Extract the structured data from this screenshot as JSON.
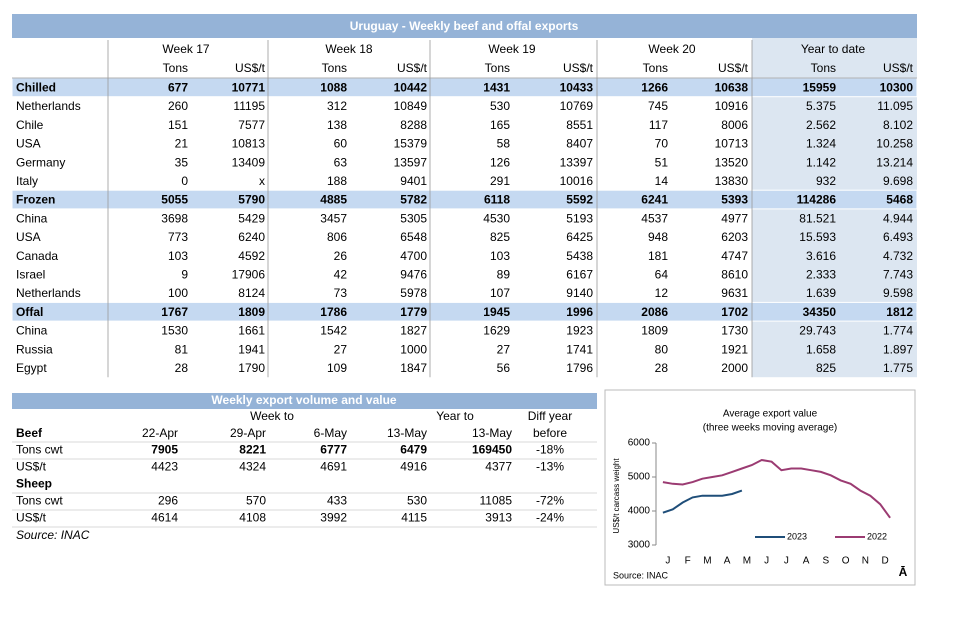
{
  "table1": {
    "title": "Uruguay - Weekly beef and offal exports",
    "header": [
      "Week 17",
      "Week 18",
      "Week 19",
      "Week 20",
      "Year to date"
    ],
    "units": [
      "Tons",
      "US$/t",
      "Tons",
      "US$/t",
      "Tons",
      "US$/t",
      "Tons",
      "US$/t",
      "Tons",
      "US$/t"
    ],
    "rows": [
      {
        "label": "Chilled",
        "section": true,
        "cells": [
          "677",
          "10771",
          "1088",
          "10442",
          "1431",
          "10433",
          "1266",
          "10638",
          "15959",
          "10300"
        ]
      },
      {
        "label": "Netherlands",
        "cells": [
          "260",
          "11195",
          "312",
          "10849",
          "530",
          "10769",
          "745",
          "10916",
          "5.375",
          "11.095"
        ]
      },
      {
        "label": "Chile",
        "cells": [
          "151",
          "7577",
          "138",
          "8288",
          "165",
          "8551",
          "117",
          "8006",
          "2.562",
          "8.102"
        ]
      },
      {
        "label": "USA",
        "cells": [
          "21",
          "10813",
          "60",
          "15379",
          "58",
          "8407",
          "70",
          "10713",
          "1.324",
          "10.258"
        ]
      },
      {
        "label": "Germany",
        "cells": [
          "35",
          "13409",
          "63",
          "13597",
          "126",
          "13397",
          "51",
          "13520",
          "1.142",
          "13.214"
        ]
      },
      {
        "label": "Italy",
        "cells": [
          "0",
          "x",
          "188",
          "9401",
          "291",
          "10016",
          "14",
          "13830",
          "932",
          "9.698"
        ]
      },
      {
        "label": "Frozen",
        "section": true,
        "cells": [
          "5055",
          "5790",
          "4885",
          "5782",
          "6118",
          "5592",
          "6241",
          "5393",
          "114286",
          "5468"
        ]
      },
      {
        "label": "China",
        "cells": [
          "3698",
          "5429",
          "3457",
          "5305",
          "4530",
          "5193",
          "4537",
          "4977",
          "81.521",
          "4.944"
        ]
      },
      {
        "label": "USA",
        "cells": [
          "773",
          "6240",
          "806",
          "6548",
          "825",
          "6425",
          "948",
          "6203",
          "15.593",
          "6.493"
        ]
      },
      {
        "label": "Canada",
        "cells": [
          "103",
          "4592",
          "26",
          "4700",
          "103",
          "5438",
          "181",
          "4747",
          "3.616",
          "4.732"
        ]
      },
      {
        "label": "Israel",
        "cells": [
          "9",
          "17906",
          "42",
          "9476",
          "89",
          "6167",
          "64",
          "8610",
          "2.333",
          "7.743"
        ]
      },
      {
        "label": "Netherlands",
        "cells": [
          "100",
          "8124",
          "73",
          "5978",
          "107",
          "9140",
          "12",
          "9631",
          "1.639",
          "9.598"
        ]
      },
      {
        "label": "Offal",
        "section": true,
        "cells": [
          "1767",
          "1809",
          "1786",
          "1779",
          "1945",
          "1996",
          "2086",
          "1702",
          "34350",
          "1812"
        ]
      },
      {
        "label": "China",
        "cells": [
          "1530",
          "1661",
          "1542",
          "1827",
          "1629",
          "1923",
          "1809",
          "1730",
          "29.743",
          "1.774"
        ]
      },
      {
        "label": "Russia",
        "cells": [
          "81",
          "1941",
          "27",
          "1000",
          "27",
          "1741",
          "80",
          "1921",
          "1.658",
          "1.897"
        ]
      },
      {
        "label": "Egypt",
        "cells": [
          "28",
          "1790",
          "109",
          "1847",
          "56",
          "1796",
          "28",
          "2000",
          "825",
          "1.775"
        ]
      }
    ]
  },
  "table2": {
    "title": "Weekly export volume and value",
    "week_to": "Week to",
    "year_to": "Year to",
    "diff": "Diff year",
    "columns": [
      "22-Apr",
      "29-Apr",
      "6-May",
      "13-May",
      "13-May",
      "before"
    ],
    "sections": [
      {
        "name": "Beef",
        "rows": [
          {
            "label": "Tons cwt",
            "bold": true,
            "cells": [
              "7905",
              "8221",
              "6777",
              "6479",
              "169450",
              "-18%"
            ]
          },
          {
            "label": "US$/t",
            "cells": [
              "4423",
              "4324",
              "4691",
              "4916",
              "4377",
              "-13%"
            ]
          }
        ]
      },
      {
        "name": "Sheep",
        "rows": [
          {
            "label": "Tons cwt",
            "cells": [
              "296",
              "570",
              "433",
              "530",
              "11085",
              "-72%"
            ]
          },
          {
            "label": "US$/t",
            "cells": [
              "4614",
              "4108",
              "3992",
              "4115",
              "3913",
              "-24%"
            ]
          }
        ]
      }
    ],
    "source": "Source: INAC"
  },
  "chart": {
    "type": "line",
    "title": "Average export  value",
    "subtitle": "(three weeks moving average)",
    "y_label": "US$/t carcass weight",
    "categories": [
      "J",
      "F",
      "M",
      "A",
      "M",
      "J",
      "J",
      "A",
      "S",
      "O",
      "N",
      "D"
    ],
    "ylim": [
      3000,
      6000
    ],
    "yticks": [
      3000,
      4000,
      5000,
      6000
    ],
    "series": [
      {
        "name": "2023",
        "color": "#1f4e79",
        "values": [
          3950,
          4050,
          4250,
          4400,
          4450,
          4450,
          4450,
          4500,
          4600
        ]
      },
      {
        "name": "2022",
        "color": "#9b3b72",
        "values": [
          4850,
          4800,
          4780,
          4850,
          4950,
          5000,
          5050,
          5150,
          5250,
          5350,
          5500,
          5450,
          5200,
          5250,
          5250,
          5200,
          5150,
          5050,
          4900,
          4800,
          4600,
          4450,
          4200,
          3800
        ]
      }
    ],
    "source": "Source: INAC",
    "logo": "Ā"
  }
}
